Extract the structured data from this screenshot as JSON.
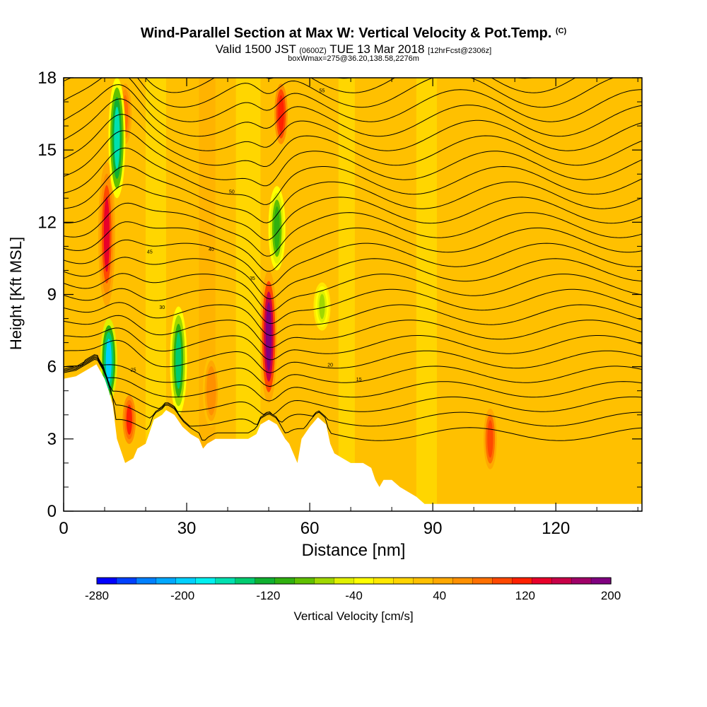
{
  "title": {
    "main": "Wind-Parallel Section at Max W: Vertical Velocity & Pot.Temp.",
    "main_tag": "(C)",
    "valid_prefix": "Valid 1500 JST",
    "valid_utc": "(0600Z)",
    "valid_date": "TUE 13 Mar 2018",
    "forecast": "[12hrFcst@2306z]",
    "box": "boxWmax=275@36.20,138.58,2276m"
  },
  "chart_data": {
    "type": "heatmap",
    "xlabel": "Distance [nm]",
    "ylabel": "Height [Kft MSL]",
    "xlim": [
      0,
      141
    ],
    "ylim": [
      0,
      18
    ],
    "x_ticks": [
      "0",
      "30",
      "60",
      "90",
      "120"
    ],
    "y_ticks": [
      "0",
      "3",
      "6",
      "9",
      "12",
      "15",
      "18"
    ],
    "colorbar": {
      "label": "Vertical Velocity [cm/s]",
      "tick_labels": [
        "-280",
        "-200",
        "-120",
        "-40",
        "40",
        "120",
        "200"
      ],
      "tick_values": [
        -280,
        -200,
        -120,
        -40,
        40,
        120,
        200
      ],
      "range": [
        -280,
        200
      ],
      "colors": [
        "#0000ff",
        "#0040ff",
        "#0080ff",
        "#00a8ff",
        "#00d0ff",
        "#00f0f0",
        "#00e0b0",
        "#00cc70",
        "#10b030",
        "#30b010",
        "#60c000",
        "#a0d800",
        "#e0f000",
        "#ffff00",
        "#ffe800",
        "#ffd400",
        "#ffc000",
        "#ffa800",
        "#ff9000",
        "#ff7000",
        "#ff4800",
        "#ff2000",
        "#e8002a",
        "#c80048",
        "#a00068",
        "#800080"
      ]
    },
    "terrain": [
      [
        0,
        5.5
      ],
      [
        3,
        5.6
      ],
      [
        5,
        5.8
      ],
      [
        7,
        6.0
      ],
      [
        8,
        6.1
      ],
      [
        9,
        5.8
      ],
      [
        10,
        5.5
      ],
      [
        11,
        5.0
      ],
      [
        12,
        4.4
      ],
      [
        13,
        3.0
      ],
      [
        14,
        2.5
      ],
      [
        15,
        2.0
      ],
      [
        17,
        2.2
      ],
      [
        18,
        2.6
      ],
      [
        20,
        2.8
      ],
      [
        21,
        3.3
      ],
      [
        22,
        3.8
      ],
      [
        24,
        4.0
      ],
      [
        25,
        4.2
      ],
      [
        27,
        4.0
      ],
      [
        29,
        3.5
      ],
      [
        31,
        3.2
      ],
      [
        33,
        3.0
      ],
      [
        34,
        2.6
      ],
      [
        35,
        2.8
      ],
      [
        37,
        3.0
      ],
      [
        40,
        3.0
      ],
      [
        45,
        3.0
      ],
      [
        47,
        3.2
      ],
      [
        48,
        3.6
      ],
      [
        50,
        3.8
      ],
      [
        52,
        3.6
      ],
      [
        54,
        3.0
      ],
      [
        55,
        2.8
      ],
      [
        56,
        2.4
      ],
      [
        57,
        2.0
      ],
      [
        58,
        3.0
      ],
      [
        60,
        3.5
      ],
      [
        62,
        3.9
      ],
      [
        64,
        3.6
      ],
      [
        65,
        2.8
      ],
      [
        66,
        2.4
      ],
      [
        68,
        2.2
      ],
      [
        70,
        2.0
      ],
      [
        73,
        2.0
      ],
      [
        75,
        1.8
      ],
      [
        76,
        1.3
      ],
      [
        77,
        1.0
      ],
      [
        78,
        1.3
      ],
      [
        80,
        1.3
      ],
      [
        82,
        1.0
      ],
      [
        84,
        0.8
      ],
      [
        86,
        0.6
      ],
      [
        88,
        0.3
      ],
      [
        100,
        0.3
      ],
      [
        120,
        0.3
      ],
      [
        141,
        0.3
      ]
    ],
    "updraft_cores": [
      {
        "x": 10.5,
        "z0": 8.5,
        "z1": 14.5,
        "w": 140
      },
      {
        "x": 16,
        "z0": 2.6,
        "z1": 5.0,
        "w": 110
      },
      {
        "x": 50,
        "z0": 4.5,
        "z1": 10.0,
        "w": 200
      },
      {
        "x": 53,
        "z0": 15.0,
        "z1": 18.0,
        "w": 120
      },
      {
        "x": 104,
        "z0": 1.5,
        "z1": 4.5,
        "w": 100
      },
      {
        "x": 36,
        "z0": 3.5,
        "z1": 6.5,
        "w": 70
      },
      {
        "x": 15,
        "z0": 15.0,
        "z1": 18.0,
        "w": 80
      }
    ],
    "downdraft_cores": [
      {
        "x": 13,
        "z0": 13.0,
        "z1": 18.0,
        "w": -160
      },
      {
        "x": 11,
        "z0": 4.5,
        "z1": 8.0,
        "w": -200
      },
      {
        "x": 28,
        "z0": 4.0,
        "z1": 8.5,
        "w": -140
      },
      {
        "x": 52,
        "z0": 10.0,
        "z1": 13.5,
        "w": -110
      },
      {
        "x": 63,
        "z0": 7.5,
        "z1": 9.5,
        "w": -70
      }
    ],
    "theta_contour_levels": [
      15,
      20,
      25,
      30,
      35,
      40,
      45,
      50,
      55
    ],
    "theta_labels": [
      {
        "text": "15",
        "x": 72,
        "z": 5.4
      },
      {
        "text": "20",
        "x": 65,
        "z": 6.0
      },
      {
        "text": "25",
        "x": 17,
        "z": 5.8
      },
      {
        "text": "30",
        "x": 24,
        "z": 8.4
      },
      {
        "text": "35",
        "x": 46,
        "z": 9.6
      },
      {
        "text": "40",
        "x": 36,
        "z": 10.8
      },
      {
        "text": "45",
        "x": 21,
        "z": 10.7
      },
      {
        "text": "50",
        "x": 41,
        "z": 13.2
      },
      {
        "text": "55",
        "x": 63,
        "z": 17.4
      }
    ]
  }
}
